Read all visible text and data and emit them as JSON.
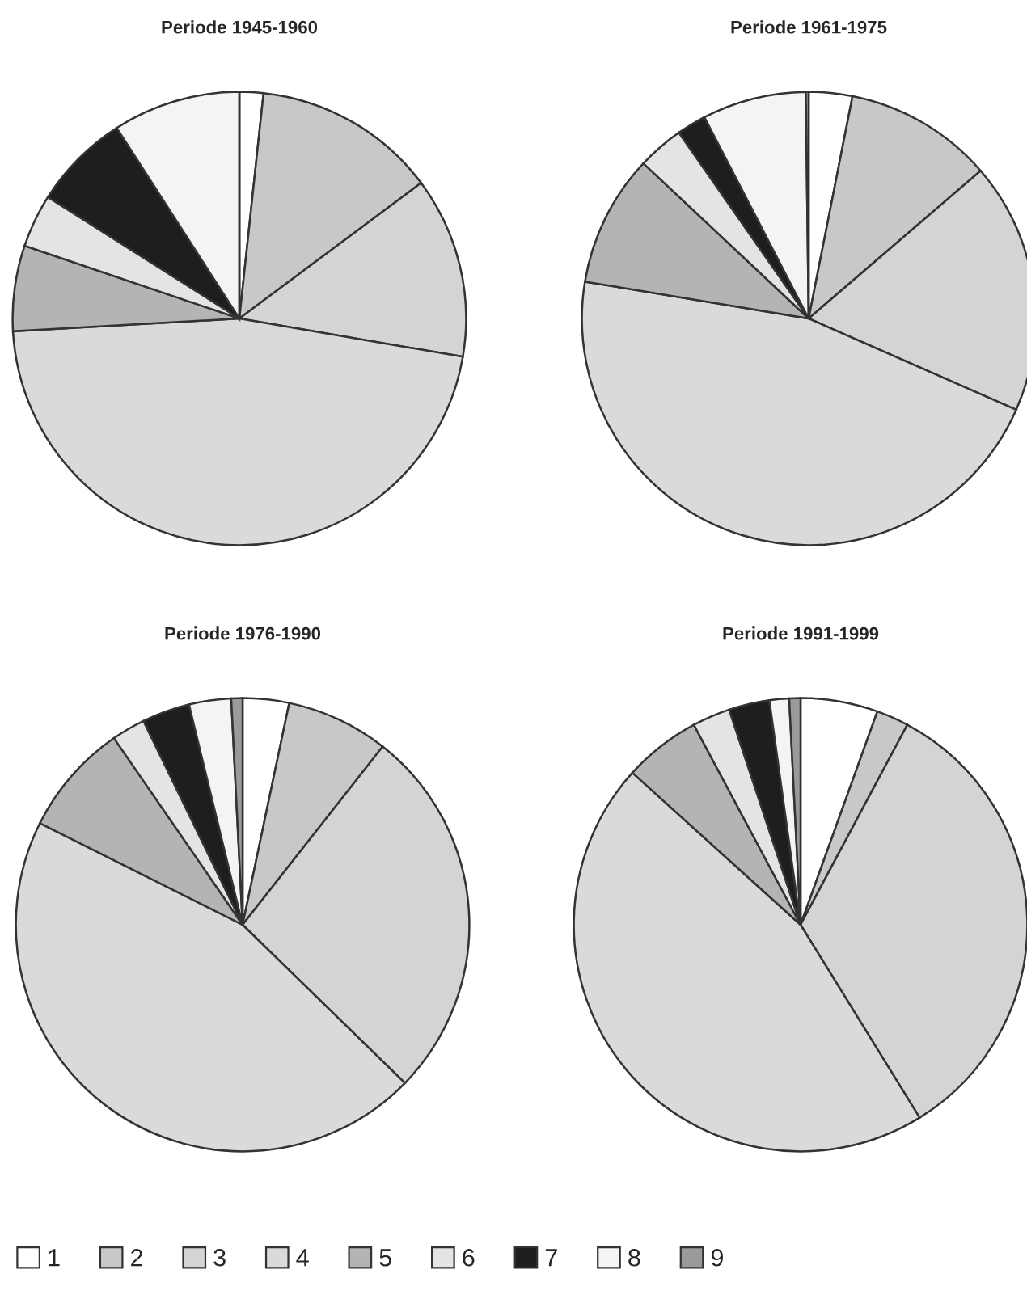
{
  "chart_data": [
    {
      "type": "pie",
      "title": "Periode 1945-1960",
      "categories": [
        "1",
        "2",
        "3",
        "4",
        "5",
        "6",
        "7",
        "8",
        "9"
      ],
      "values": [
        1.7,
        13.1,
        12.9,
        46.4,
        6.1,
        3.8,
        6.9,
        9.1,
        0
      ],
      "colors": [
        "#ffffff",
        "#c8c8c8",
        "#d4d4d4",
        "#dadada",
        "#b4b4b4",
        "#e4e4e4",
        "#1e1e1e",
        "#f4f4f4",
        "#9a9a9a"
      ],
      "legend": "bottom"
    },
    {
      "type": "pie",
      "title": "Periode 1961-1975",
      "categories": [
        null,
        null,
        null,
        null,
        null,
        null,
        null,
        null,
        null
      ],
      "values": [
        3.1,
        10.6,
        17.9,
        46.0,
        9.4,
        3.3,
        2.1,
        7.4,
        0.2
      ],
      "colors": [
        "#ffffff",
        "#c8c8c8",
        "#d4d4d4",
        "#dadada",
        "#b4b4b4",
        "#e4e4e4",
        "#1e1e1e",
        "#f4f4f4",
        "#9a9a9a"
      ]
    },
    {
      "type": "pie",
      "title": "Periode 1976-1990",
      "categories": [
        null,
        null,
        null,
        null,
        null,
        null,
        null,
        null,
        null
      ],
      "values": [
        3.3,
        7.3,
        26.7,
        45.1,
        8.0,
        2.4,
        3.4,
        3.0,
        0.8
      ],
      "colors": [
        "#ffffff",
        "#c8c8c8",
        "#d4d4d4",
        "#dadada",
        "#b4b4b4",
        "#e4e4e4",
        "#1e1e1e",
        "#f4f4f4",
        "#9a9a9a"
      ]
    },
    {
      "type": "pie",
      "title": "Periode 1991-1999",
      "categories": [
        null,
        null,
        null,
        null,
        null,
        null,
        null,
        null,
        null
      ],
      "values": [
        5.5,
        2.3,
        33.4,
        45.5,
        5.5,
        2.7,
        2.9,
        1.4,
        0.8
      ],
      "colors": [
        "#ffffff",
        "#c8c8c8",
        "#d4d4d4",
        "#dadada",
        "#b4b4b4",
        "#e4e4e4",
        "#1e1e1e",
        "#f4f4f4",
        "#9a9a9a"
      ]
    }
  ]
}
